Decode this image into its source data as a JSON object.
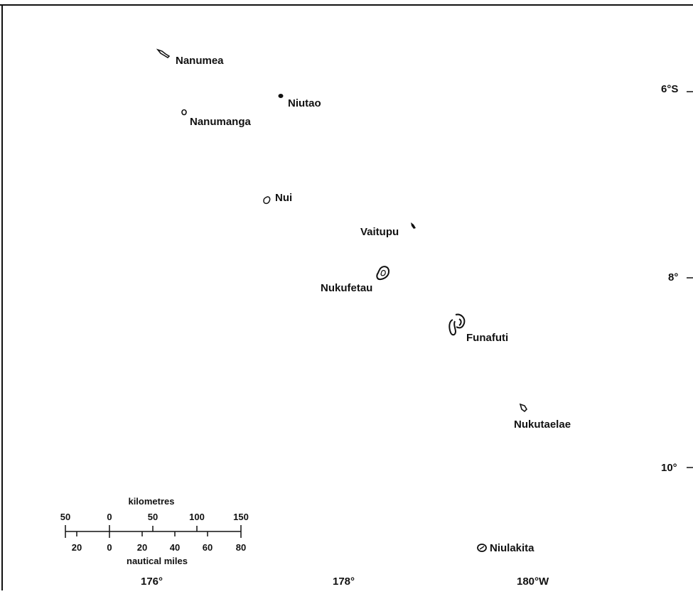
{
  "map": {
    "islands": [
      {
        "name": "Nanumea"
      },
      {
        "name": "Niutao"
      },
      {
        "name": "Nanumanga"
      },
      {
        "name": "Nui"
      },
      {
        "name": "Vaitupu"
      },
      {
        "name": "Nukufetau"
      },
      {
        "name": "Funafuti"
      },
      {
        "name": "Nukutaelae"
      },
      {
        "name": "Niulakita"
      }
    ],
    "latitudes": [
      "6°S",
      "8°",
      "10°"
    ],
    "longitudes": [
      "176°",
      "178°",
      "180°W"
    ],
    "scale_bar": {
      "km_title": "kilometres",
      "km_ticks": [
        "50",
        "0",
        "50",
        "100",
        "150"
      ],
      "nm_ticks": [
        "20",
        "0",
        "20",
        "40",
        "60",
        "80"
      ],
      "nm_title": "nautical miles"
    }
  }
}
